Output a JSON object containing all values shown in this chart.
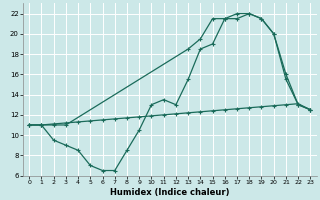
{
  "xlabel": "Humidex (Indice chaleur)",
  "xlim": [
    -0.5,
    23.5
  ],
  "ylim": [
    6,
    23
  ],
  "yticks": [
    6,
    8,
    10,
    12,
    14,
    16,
    18,
    20,
    22
  ],
  "xticks": [
    0,
    1,
    2,
    3,
    4,
    5,
    6,
    7,
    8,
    9,
    10,
    11,
    12,
    13,
    14,
    15,
    16,
    17,
    18,
    19,
    20,
    21,
    22,
    23
  ],
  "bg_color": "#cce8e8",
  "grid_color": "#ffffff",
  "line_color": "#1a6b5a",
  "line1_x": [
    0,
    1,
    2,
    3,
    4,
    5,
    6,
    7,
    8,
    9,
    10,
    11,
    12,
    13,
    14,
    15,
    16,
    17,
    18,
    19,
    20,
    21,
    22,
    23
  ],
  "line1_y": [
    11,
    11,
    9.5,
    9.0,
    8.5,
    7.0,
    6.5,
    6.5,
    8.5,
    10.5,
    13.0,
    13.5,
    13.0,
    15.5,
    18.5,
    19.0,
    21.5,
    21.5,
    22.0,
    21.5,
    20.0,
    16.0,
    13.0,
    12.5
  ],
  "line2_x": [
    0,
    1,
    2,
    3,
    4,
    5,
    6,
    7,
    8,
    9,
    10,
    11,
    12,
    13,
    14,
    15,
    16,
    17,
    18,
    19,
    20,
    21,
    22,
    23
  ],
  "line2_y": [
    11.0,
    11.0,
    11.1,
    11.2,
    11.3,
    11.4,
    11.5,
    11.6,
    11.7,
    11.8,
    11.9,
    12.0,
    12.1,
    12.2,
    12.3,
    12.4,
    12.5,
    12.6,
    12.7,
    12.8,
    12.9,
    13.0,
    13.1,
    12.5
  ],
  "line3_x": [
    0,
    1,
    2,
    3,
    13,
    14,
    15,
    16,
    17,
    18,
    19,
    20,
    21,
    22,
    23
  ],
  "line3_y": [
    11,
    11,
    11,
    11,
    18.5,
    19.5,
    21.5,
    21.5,
    22.0,
    22.0,
    21.5,
    20.0,
    15.5,
    13.0,
    12.5
  ]
}
